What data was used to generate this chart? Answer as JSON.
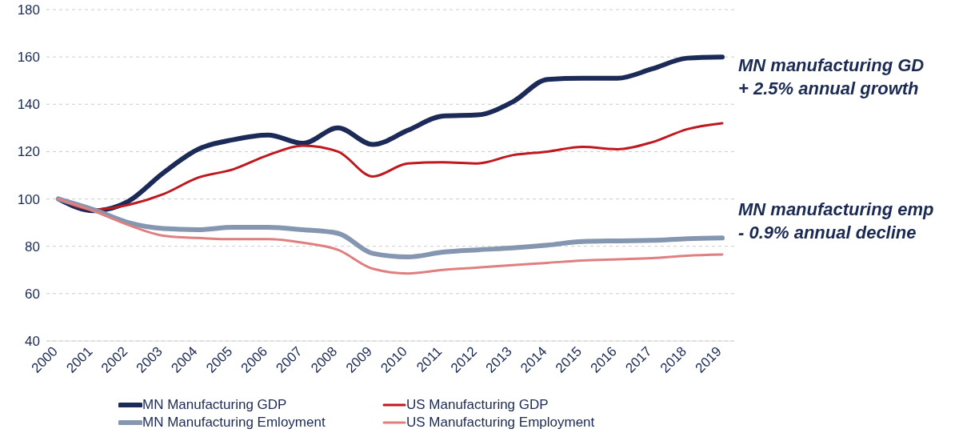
{
  "chart_data": {
    "type": "line",
    "categories": [
      "2000",
      "2001",
      "2002",
      "2003",
      "2004",
      "2005",
      "2006",
      "2007",
      "2008",
      "2009",
      "2010",
      "2011",
      "2012",
      "2013",
      "2014",
      "2015",
      "2016",
      "2017",
      "2018",
      "2019"
    ],
    "series": [
      {
        "name": "MN Manufacturing GDP",
        "color": "#1b2a57",
        "values": [
          100,
          95,
          99,
          111,
          121,
          125,
          127,
          123.5,
          130,
          123,
          129,
          135,
          135.5,
          141,
          150.5,
          151,
          151,
          155,
          159.5,
          160
        ]
      },
      {
        "name": "US Manufacturing GDP",
        "color": "#c0181f",
        "values": [
          100,
          95.5,
          97.5,
          102,
          109,
          112.5,
          118.5,
          122.5,
          120,
          109.5,
          115,
          115.5,
          115,
          118.5,
          120,
          122,
          121,
          124,
          129.5,
          132
        ]
      },
      {
        "name": "MN Manufacturing Emloyment",
        "color": "#8496b0",
        "values": [
          100,
          95.5,
          90,
          87.5,
          87,
          88,
          88,
          87,
          85.5,
          77,
          75.5,
          77.5,
          78.5,
          79.3,
          80.5,
          82,
          82.3,
          82.5,
          83.2,
          83.5
        ]
      },
      {
        "name": "US Manufacturing Employment",
        "color": "#e07f80",
        "values": [
          100,
          95,
          89,
          84.5,
          83.5,
          83,
          83,
          81.5,
          78.5,
          70.5,
          68.5,
          70,
          71,
          72,
          73,
          74,
          74.5,
          75,
          76,
          76.5
        ]
      }
    ],
    "ylim": [
      40,
      180
    ],
    "yticks": [
      40,
      60,
      80,
      100,
      120,
      140,
      160,
      180
    ],
    "grid": "y",
    "legend": "bottom",
    "marker": "none",
    "line_style": "solid",
    "annotations": [
      "MN manufacturing GD\n+ 2.5% annual growth",
      "MN manufacturing emp\n- 0.9% annual decline"
    ]
  }
}
